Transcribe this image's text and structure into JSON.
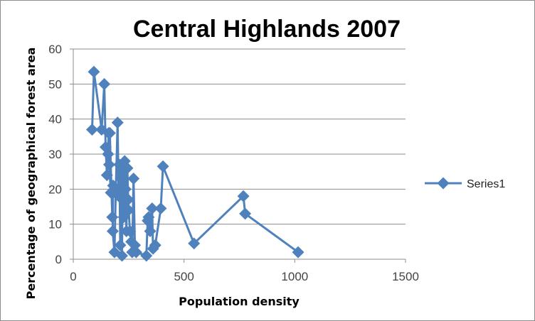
{
  "chart_data": {
    "type": "line",
    "title": "Central Highlands 2007",
    "xlabel": "Population density",
    "ylabel": "Percentage of geographical forest area",
    "xlim": [
      0,
      1500
    ],
    "ylim": [
      0,
      60
    ],
    "x_ticks": [
      0,
      500,
      1000,
      1500
    ],
    "y_ticks": [
      0,
      10,
      20,
      30,
      40,
      50,
      60
    ],
    "grid": "horizontal",
    "legend_position": "right",
    "series": [
      {
        "name": "Series1",
        "color": "#4F81BD",
        "marker": "diamond",
        "points": [
          [
            85,
            37
          ],
          [
            93,
            53.5
          ],
          [
            128,
            37
          ],
          [
            140,
            50
          ],
          [
            146,
            32
          ],
          [
            152,
            24
          ],
          [
            160,
            36
          ],
          [
            157,
            30
          ],
          [
            162,
            27
          ],
          [
            170,
            19
          ],
          [
            165,
            36
          ],
          [
            176,
            12
          ],
          [
            180,
            21
          ],
          [
            178,
            8
          ],
          [
            186,
            2
          ],
          [
            192,
            20
          ],
          [
            200,
            39
          ],
          [
            205,
            18
          ],
          [
            208,
            27
          ],
          [
            212,
            4
          ],
          [
            216,
            23
          ],
          [
            220,
            1
          ],
          [
            223,
            25
          ],
          [
            228,
            12
          ],
          [
            232,
            28
          ],
          [
            236,
            20
          ],
          [
            240,
            8
          ],
          [
            244,
            26
          ],
          [
            248,
            17
          ],
          [
            250,
            14
          ],
          [
            256,
            8
          ],
          [
            262,
            5
          ],
          [
            266,
            2
          ],
          [
            272,
            23
          ],
          [
            278,
            4
          ],
          [
            284,
            2
          ],
          [
            330,
            1
          ],
          [
            336,
            11
          ],
          [
            340,
            12
          ],
          [
            347,
            8
          ],
          [
            356,
            14.5
          ],
          [
            360,
            3
          ],
          [
            370,
            4
          ],
          [
            395,
            14.5
          ],
          [
            405,
            26.5
          ],
          [
            545,
            4.5
          ],
          [
            768,
            18
          ],
          [
            776,
            13
          ],
          [
            1015,
            2
          ]
        ]
      }
    ]
  }
}
